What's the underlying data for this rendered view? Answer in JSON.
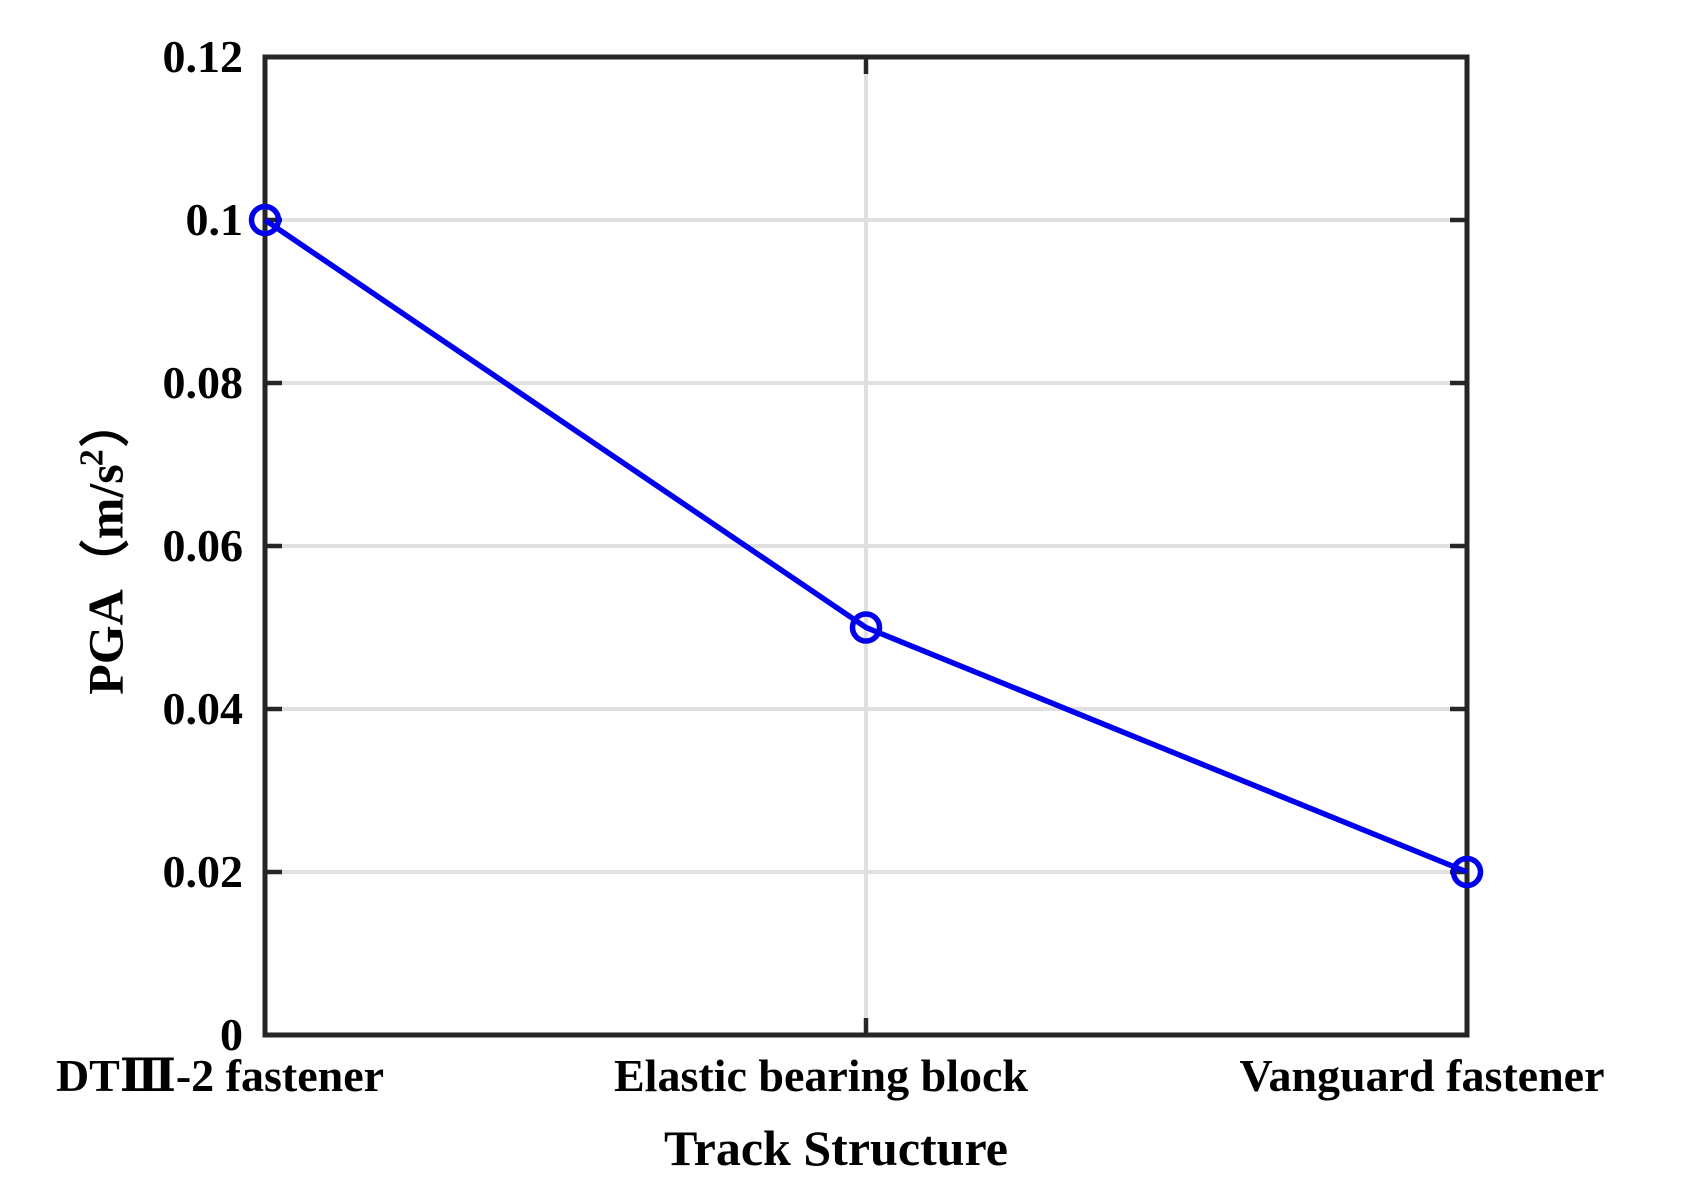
{
  "chart_data": {
    "type": "line",
    "categories": [
      "DTⅢ-2 fastener",
      "Elastic bearing block",
      "Vanguard fastener"
    ],
    "series": [
      {
        "name": "PGA",
        "values": [
          0.1,
          0.05,
          0.02
        ]
      }
    ],
    "xlabel": "Track Structure",
    "ylabel": "PGA（m/s²）",
    "ylabel_parts": {
      "prefix": "PGA（m/s",
      "sup": "2",
      "suffix": "）"
    },
    "ylim": [
      0,
      0.12
    ],
    "yticks": [
      0,
      0.02,
      0.04,
      0.06,
      0.08,
      0.1,
      0.12
    ],
    "ytick_labels": [
      "0",
      "0.02",
      "0.04",
      "0.06",
      "0.08",
      "0.1",
      "0.12"
    ],
    "grid": true,
    "legend": "none",
    "marker": "open-circle",
    "colors": {
      "line": "#0000EE",
      "marker": "#0000EE",
      "grid": "#E0E0E0",
      "axis": "#262626",
      "text": "#000000",
      "background": "#FFFFFF"
    }
  }
}
